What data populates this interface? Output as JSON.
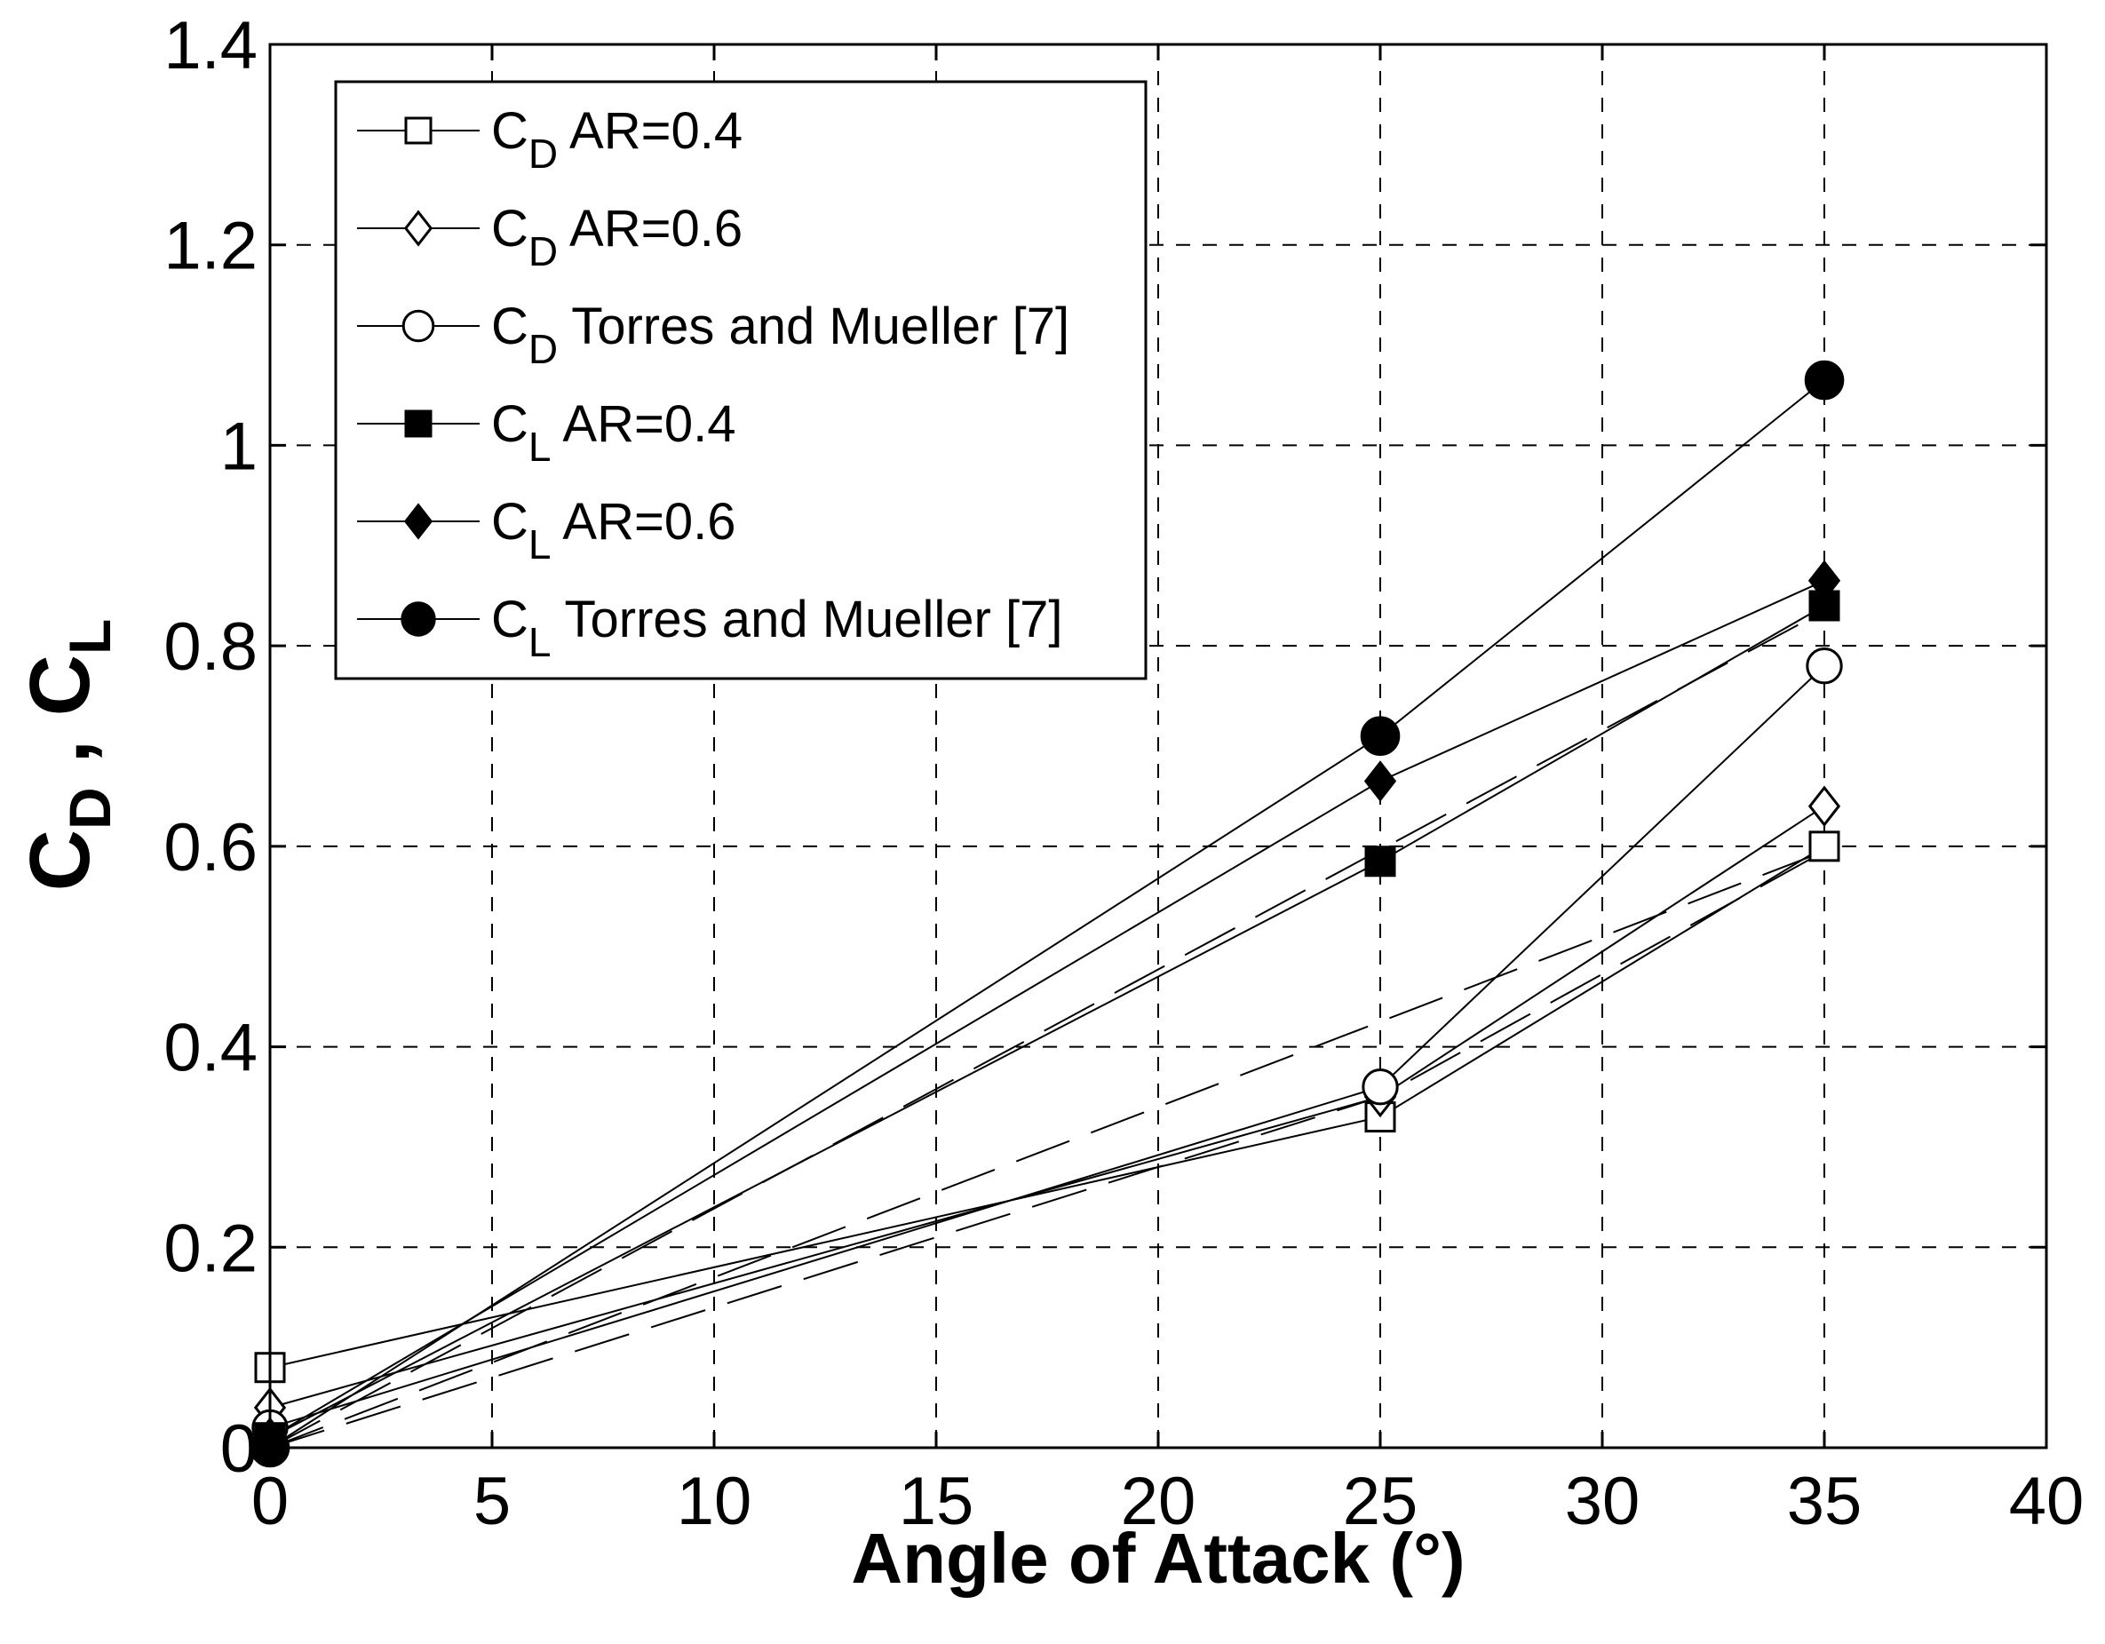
{
  "chart_data": {
    "type": "line",
    "title": "",
    "xlabel": "Angle of Attack (°)",
    "ylabel": {
      "c": "C",
      "d_sub": "D",
      "sep": ",",
      "l_sub": "L"
    },
    "xlim": [
      0,
      40
    ],
    "ylim": [
      0,
      1.4
    ],
    "xticks": [
      0,
      5,
      10,
      15,
      20,
      25,
      30,
      35,
      40
    ],
    "yticks": [
      0,
      0.2,
      0.4,
      0.6,
      0.8,
      1,
      1.2,
      1.4
    ],
    "xtick_labels": [
      "0",
      "5",
      "10",
      "15",
      "20",
      "25",
      "30",
      "35",
      "40"
    ],
    "ytick_labels": [
      "0",
      "0.2",
      "0.4",
      "0.6",
      "0.8",
      "1",
      "1.2",
      "1.4"
    ],
    "grid": true,
    "legend_position": "top-left",
    "series": [
      {
        "name": "CD AR=0.4",
        "symbol": "C",
        "sub": "D",
        "rest": "AR=0.4",
        "marker": "square",
        "filled": false,
        "x": [
          0,
          25,
          35
        ],
        "y": [
          0.08,
          0.33,
          0.6
        ]
      },
      {
        "name": "CD AR=0.6",
        "symbol": "C",
        "sub": "D",
        "rest": "AR=0.6",
        "marker": "diamond",
        "filled": false,
        "x": [
          0,
          25,
          35
        ],
        "y": [
          0.04,
          0.35,
          0.64
        ]
      },
      {
        "name": "CD Torres and Mueller [7]",
        "symbol": "C",
        "sub": "D",
        "rest": "Torres and Mueller [7]",
        "marker": "circle",
        "filled": false,
        "x": [
          0,
          25,
          35
        ],
        "y": [
          0.02,
          0.36,
          0.78
        ]
      },
      {
        "name": "CL AR=0.4",
        "symbol": "C",
        "sub": "L",
        "rest": "AR=0.4",
        "marker": "square",
        "filled": true,
        "x": [
          0,
          25,
          35
        ],
        "y": [
          0.01,
          0.585,
          0.84
        ]
      },
      {
        "name": "CL AR=0.6",
        "symbol": "C",
        "sub": "L",
        "rest": "AR=0.6",
        "marker": "diamond",
        "filled": true,
        "x": [
          0,
          25,
          35
        ],
        "y": [
          0.01,
          0.665,
          0.865
        ]
      },
      {
        "name": "CL Torres and Mueller [7]",
        "symbol": "C",
        "sub": "L",
        "rest": "Torres and Mueller [7]",
        "marker": "circle",
        "filled": true,
        "x": [
          0,
          25,
          35
        ],
        "y": [
          0,
          0.71,
          1.065
        ]
      }
    ],
    "trend_lines": [
      {
        "name": "CD dashed fit",
        "style": "long-dash",
        "x": [
          0,
          35
        ],
        "y": [
          0.0,
          0.595
        ]
      },
      {
        "name": "CD piecewise dashed",
        "style": "long-dash",
        "x": [
          0,
          25,
          35
        ],
        "y": [
          0.0,
          0.35,
          0.595
        ]
      },
      {
        "name": "CL dashed fit",
        "style": "long-dash",
        "x": [
          0,
          35
        ],
        "y": [
          0.0,
          0.835
        ]
      }
    ]
  }
}
